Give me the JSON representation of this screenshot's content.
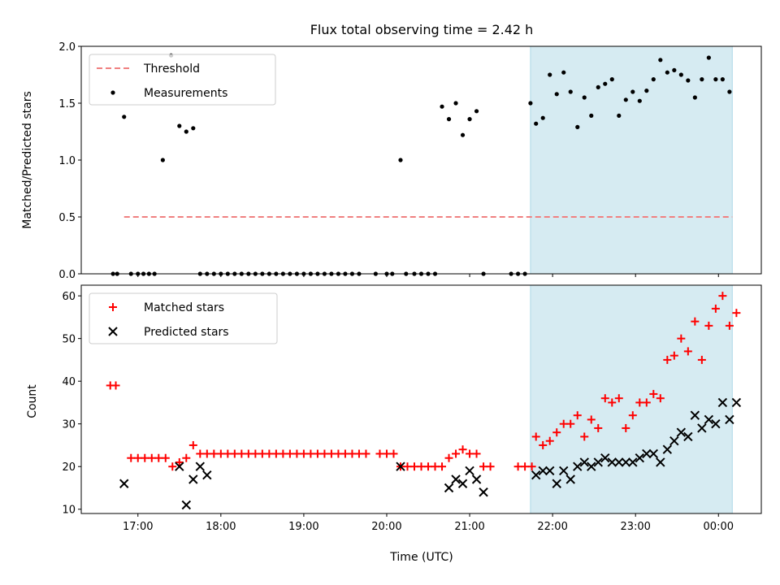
{
  "chart_data": [
    {
      "type": "scatter",
      "title": "Flux total observing time = 2.42 h",
      "ylabel": "Matched/Predicted stars",
      "xlabel": "",
      "ylim": [
        0,
        2.0
      ],
      "yticks": [
        "0.0",
        "0.5",
        "1.0",
        "1.5",
        "2.0"
      ],
      "grid": false,
      "legend": "upper left",
      "shaded_interval": [
        "21:44",
        "00:10"
      ],
      "threshold": {
        "name": "Threshold",
        "value": 0.5,
        "color": "#f08080",
        "style": "dashed",
        "x_range": [
          "16:50",
          "00:10"
        ]
      },
      "series": [
        {
          "name": "Measurements",
          "color": "#000000",
          "points": [
            [
              "16:42",
              0
            ],
            [
              "16:45",
              0
            ],
            [
              "16:50",
              1.38
            ],
            [
              "16:55",
              0
            ],
            [
              "17:00",
              0
            ],
            [
              "17:04",
              0
            ],
            [
              "17:08",
              0
            ],
            [
              "17:12",
              0
            ],
            [
              "17:18",
              1.0
            ],
            [
              "17:24",
              1.92
            ],
            [
              "17:30",
              1.3
            ],
            [
              "17:35",
              1.25
            ],
            [
              "17:40",
              1.28
            ],
            [
              "17:45",
              0
            ],
            [
              "17:50",
              0
            ],
            [
              "17:55",
              0
            ],
            [
              "18:00",
              0
            ],
            [
              "18:05",
              0
            ],
            [
              "18:10",
              0
            ],
            [
              "18:15",
              0
            ],
            [
              "18:20",
              0
            ],
            [
              "18:25",
              0
            ],
            [
              "18:30",
              0
            ],
            [
              "18:35",
              0
            ],
            [
              "18:40",
              0
            ],
            [
              "18:45",
              0
            ],
            [
              "18:50",
              0
            ],
            [
              "18:55",
              0
            ],
            [
              "19:00",
              0
            ],
            [
              "19:05",
              0
            ],
            [
              "19:10",
              0
            ],
            [
              "19:15",
              0
            ],
            [
              "19:20",
              0
            ],
            [
              "19:25",
              0
            ],
            [
              "19:30",
              0
            ],
            [
              "19:35",
              0
            ],
            [
              "19:40",
              0
            ],
            [
              "19:52",
              0
            ],
            [
              "20:00",
              0
            ],
            [
              "20:04",
              0
            ],
            [
              "20:10",
              1.0
            ],
            [
              "20:14",
              0
            ],
            [
              "20:20",
              0
            ],
            [
              "20:25",
              0
            ],
            [
              "20:30",
              0
            ],
            [
              "20:35",
              0
            ],
            [
              "20:40",
              1.47
            ],
            [
              "20:45",
              1.36
            ],
            [
              "20:50",
              1.5
            ],
            [
              "20:55",
              1.22
            ],
            [
              "21:00",
              1.36
            ],
            [
              "21:05",
              1.43
            ],
            [
              "21:10",
              0
            ],
            [
              "21:30",
              0
            ],
            [
              "21:35",
              0
            ],
            [
              "21:40",
              0
            ],
            [
              "21:44",
              1.5
            ],
            [
              "21:48",
              1.32
            ],
            [
              "21:53",
              1.37
            ],
            [
              "21:58",
              1.75
            ],
            [
              "22:03",
              1.58
            ],
            [
              "22:08",
              1.77
            ],
            [
              "22:13",
              1.6
            ],
            [
              "22:18",
              1.29
            ],
            [
              "22:23",
              1.55
            ],
            [
              "22:28",
              1.39
            ],
            [
              "22:33",
              1.64
            ],
            [
              "22:38",
              1.67
            ],
            [
              "22:43",
              1.71
            ],
            [
              "22:48",
              1.39
            ],
            [
              "22:53",
              1.53
            ],
            [
              "22:58",
              1.6
            ],
            [
              "23:03",
              1.52
            ],
            [
              "23:08",
              1.61
            ],
            [
              "23:13",
              1.71
            ],
            [
              "23:18",
              1.88
            ],
            [
              "23:23",
              1.77
            ],
            [
              "23:28",
              1.79
            ],
            [
              "23:33",
              1.75
            ],
            [
              "23:38",
              1.7
            ],
            [
              "23:43",
              1.55
            ],
            [
              "23:48",
              1.71
            ],
            [
              "23:53",
              1.9
            ],
            [
              "23:58",
              1.71
            ],
            [
              "00:03",
              1.71
            ],
            [
              "00:08",
              1.6
            ]
          ]
        }
      ]
    },
    {
      "type": "scatter",
      "title": "",
      "ylabel": "Count",
      "xlabel": "Time (UTC)",
      "ylim": [
        9,
        62.5
      ],
      "yticks": [
        "10",
        "20",
        "30",
        "40",
        "50",
        "60"
      ],
      "xticks": [
        "17:00",
        "18:00",
        "19:00",
        "20:00",
        "21:00",
        "22:00",
        "23:00",
        "00:00"
      ],
      "grid": false,
      "legend": "upper left",
      "shaded_interval": [
        "21:44",
        "00:10"
      ],
      "series": [
        {
          "name": "Matched stars",
          "color": "#ff0000",
          "marker": "plus",
          "points": [
            [
              "16:40",
              39
            ],
            [
              "16:44",
              39
            ],
            [
              "16:55",
              22
            ],
            [
              "17:00",
              22
            ],
            [
              "17:05",
              22
            ],
            [
              "17:10",
              22
            ],
            [
              "17:15",
              22
            ],
            [
              "17:20",
              22
            ],
            [
              "17:25",
              20
            ],
            [
              "17:30",
              21
            ],
            [
              "17:35",
              22
            ],
            [
              "17:40",
              25
            ],
            [
              "17:45",
              23
            ],
            [
              "17:50",
              23
            ],
            [
              "17:55",
              23
            ],
            [
              "18:00",
              23
            ],
            [
              "18:05",
              23
            ],
            [
              "18:10",
              23
            ],
            [
              "18:15",
              23
            ],
            [
              "18:20",
              23
            ],
            [
              "18:25",
              23
            ],
            [
              "18:30",
              23
            ],
            [
              "18:35",
              23
            ],
            [
              "18:40",
              23
            ],
            [
              "18:45",
              23
            ],
            [
              "18:50",
              23
            ],
            [
              "18:55",
              23
            ],
            [
              "19:00",
              23
            ],
            [
              "19:05",
              23
            ],
            [
              "19:10",
              23
            ],
            [
              "19:15",
              23
            ],
            [
              "19:20",
              23
            ],
            [
              "19:25",
              23
            ],
            [
              "19:30",
              23
            ],
            [
              "19:35",
              23
            ],
            [
              "19:40",
              23
            ],
            [
              "19:45",
              23
            ],
            [
              "19:55",
              23
            ],
            [
              "20:00",
              23
            ],
            [
              "20:05",
              23
            ],
            [
              "20:10",
              20
            ],
            [
              "20:15",
              20
            ],
            [
              "20:20",
              20
            ],
            [
              "20:25",
              20
            ],
            [
              "20:30",
              20
            ],
            [
              "20:35",
              20
            ],
            [
              "20:40",
              20
            ],
            [
              "20:45",
              22
            ],
            [
              "20:50",
              23
            ],
            [
              "20:55",
              24
            ],
            [
              "21:00",
              23
            ],
            [
              "21:05",
              23
            ],
            [
              "21:10",
              20
            ],
            [
              "21:15",
              20
            ],
            [
              "21:35",
              20
            ],
            [
              "21:40",
              20
            ],
            [
              "21:45",
              20
            ],
            [
              "21:48",
              27
            ],
            [
              "21:53",
              25
            ],
            [
              "21:58",
              26
            ],
            [
              "22:03",
              28
            ],
            [
              "22:08",
              30
            ],
            [
              "22:13",
              30
            ],
            [
              "22:18",
              32
            ],
            [
              "22:23",
              27
            ],
            [
              "22:28",
              31
            ],
            [
              "22:33",
              29
            ],
            [
              "22:38",
              36
            ],
            [
              "22:43",
              35
            ],
            [
              "22:48",
              36
            ],
            [
              "22:53",
              29
            ],
            [
              "22:58",
              32
            ],
            [
              "23:03",
              35
            ],
            [
              "23:08",
              35
            ],
            [
              "23:13",
              37
            ],
            [
              "23:18",
              36
            ],
            [
              "23:23",
              45
            ],
            [
              "23:28",
              46
            ],
            [
              "23:33",
              50
            ],
            [
              "23:38",
              47
            ],
            [
              "23:43",
              54
            ],
            [
              "23:48",
              45
            ],
            [
              "23:53",
              53
            ],
            [
              "23:58",
              57
            ],
            [
              "00:03",
              60
            ],
            [
              "00:08",
              53
            ],
            [
              "00:13",
              56
            ]
          ]
        },
        {
          "name": "Predicted stars",
          "color": "#000000",
          "marker": "x",
          "points": [
            [
              "16:50",
              16
            ],
            [
              "17:30",
              20
            ],
            [
              "17:35",
              11
            ],
            [
              "17:40",
              17
            ],
            [
              "17:45",
              20
            ],
            [
              "17:50",
              18
            ],
            [
              "20:10",
              20
            ],
            [
              "20:45",
              15
            ],
            [
              "20:50",
              17
            ],
            [
              "20:55",
              16
            ],
            [
              "21:00",
              19
            ],
            [
              "21:05",
              17
            ],
            [
              "21:10",
              14
            ],
            [
              "21:48",
              18
            ],
            [
              "21:53",
              19
            ],
            [
              "21:58",
              19
            ],
            [
              "22:03",
              16
            ],
            [
              "22:08",
              19
            ],
            [
              "22:13",
              17
            ],
            [
              "22:18",
              20
            ],
            [
              "22:23",
              21
            ],
            [
              "22:28",
              20
            ],
            [
              "22:33",
              21
            ],
            [
              "22:38",
              22
            ],
            [
              "22:43",
              21
            ],
            [
              "22:48",
              21
            ],
            [
              "22:53",
              21
            ],
            [
              "22:58",
              21
            ],
            [
              "23:03",
              22
            ],
            [
              "23:08",
              23
            ],
            [
              "23:13",
              23
            ],
            [
              "23:18",
              21
            ],
            [
              "23:23",
              24
            ],
            [
              "23:28",
              26
            ],
            [
              "23:33",
              28
            ],
            [
              "23:38",
              27
            ],
            [
              "23:43",
              32
            ],
            [
              "23:48",
              29
            ],
            [
              "23:53",
              31
            ],
            [
              "23:58",
              30
            ],
            [
              "00:03",
              35
            ],
            [
              "00:08",
              31
            ],
            [
              "00:13",
              35
            ]
          ]
        }
      ]
    }
  ]
}
